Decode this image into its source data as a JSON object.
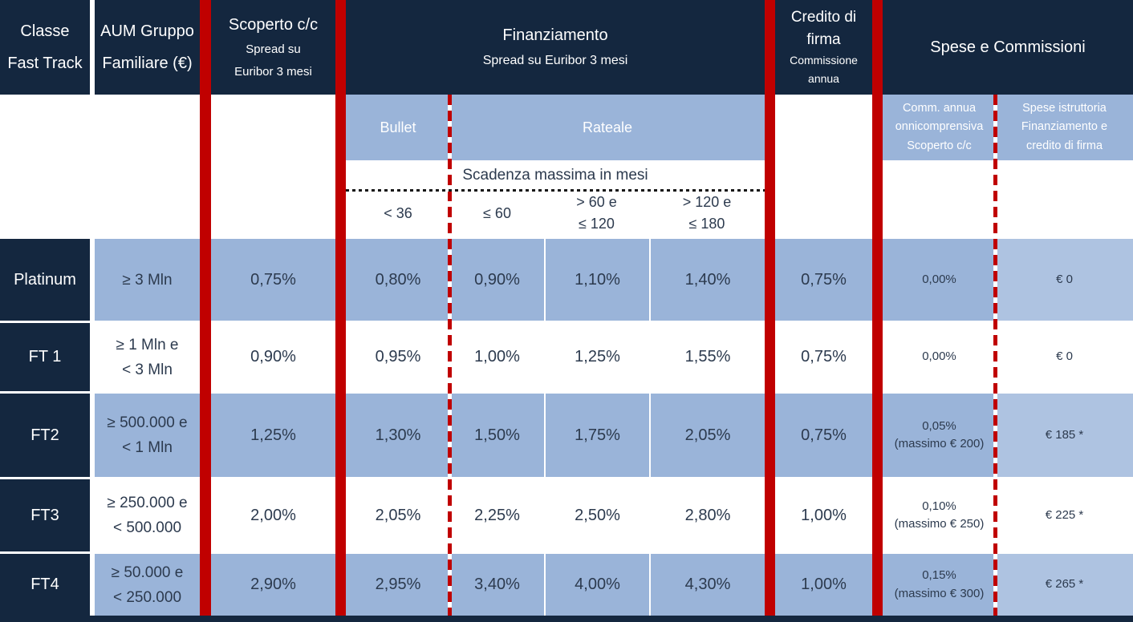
{
  "header": {
    "classe_l1": "Classe",
    "classe_l2": "Fast Track",
    "aum_l1": "AUM Gruppo",
    "aum_l2": "Familiare (€)",
    "scoperto_title": "Scoperto c/c",
    "scoperto_sub1": "Spread su",
    "scoperto_sub2": "Euribor 3 mesi",
    "finanziamento_title": "Finanziamento",
    "finanziamento_sub": "Spread su Euribor 3 mesi",
    "credito_l1": "Credito di",
    "credito_l2": "firma",
    "credito_sub1": "Commissione",
    "credito_sub2": "annua",
    "spese_title": "Spese e Commissioni"
  },
  "subheader": {
    "bullet": "Bullet",
    "rateale": "Rateale",
    "scadenza": "Scadenza massima in mesi",
    "mat1": "< 36",
    "mat2": "≤ 60",
    "mat3_l1": "> 60 e",
    "mat3_l2": "≤ 120",
    "mat4_l1": "> 120 e",
    "mat4_l2": "≤ 180",
    "comm_l1": "Comm. annua",
    "comm_l2": "onnicomprensiva",
    "comm_l3": "Scoperto c/c",
    "spese_l1": "Spese istruttoria",
    "spese_l2": "Finanziamento e",
    "spese_l3": "credito di firma"
  },
  "rows": [
    {
      "classe": "Platinum",
      "aum1": "≥ 3 Mln",
      "aum2": "",
      "scoperto": "0,75%",
      "bullet": "0,80%",
      "rat1": "0,90%",
      "rat2": "1,10%",
      "rat3": "1,40%",
      "credito": "0,75%",
      "comm1": "0,00%",
      "comm2": "",
      "spese": "€ 0"
    },
    {
      "classe": "FT 1",
      "aum1": "≥ 1 Mln e",
      "aum2": "< 3 Mln",
      "scoperto": "0,90%",
      "bullet": "0,95%",
      "rat1": "1,00%",
      "rat2": "1,25%",
      "rat3": "1,55%",
      "credito": "0,75%",
      "comm1": "0,00%",
      "comm2": "",
      "spese": "€ 0"
    },
    {
      "classe": "FT2",
      "aum1": "≥ 500.000 e",
      "aum2": "< 1 Mln",
      "scoperto": "1,25%",
      "bullet": "1,30%",
      "rat1": "1,50%",
      "rat2": "1,75%",
      "rat3": "2,05%",
      "credito": "0,75%",
      "comm1": "0,05%",
      "comm2": "(massimo € 200)",
      "spese": "€ 185 *"
    },
    {
      "classe": "FT3",
      "aum1": "≥ 250.000 e",
      "aum2": "< 500.000",
      "scoperto": "2,00%",
      "bullet": "2,05%",
      "rat1": "2,25%",
      "rat2": "2,50%",
      "rat3": "2,80%",
      "credito": "1,00%",
      "comm1": "0,10%",
      "comm2": "(massimo € 250)",
      "spese": "€ 225 *"
    },
    {
      "classe": "FT4",
      "aum1": "≥ 50.000 e",
      "aum2": "< 250.000",
      "scoperto": "2,90%",
      "bullet": "2,95%",
      "rat1": "3,40%",
      "rat2": "4,00%",
      "rat3": "4,30%",
      "credito": "1,00%",
      "comm1": "0,15%",
      "comm2": "(massimo € 300)",
      "spese": "€ 265 *"
    }
  ],
  "colors": {
    "dark_navy": "#14273f",
    "row_blue": "#9ab4d9",
    "row_blue_light": "#aec3e1",
    "bar_red": "#c00000",
    "text_navy": "#2c3a4e"
  }
}
